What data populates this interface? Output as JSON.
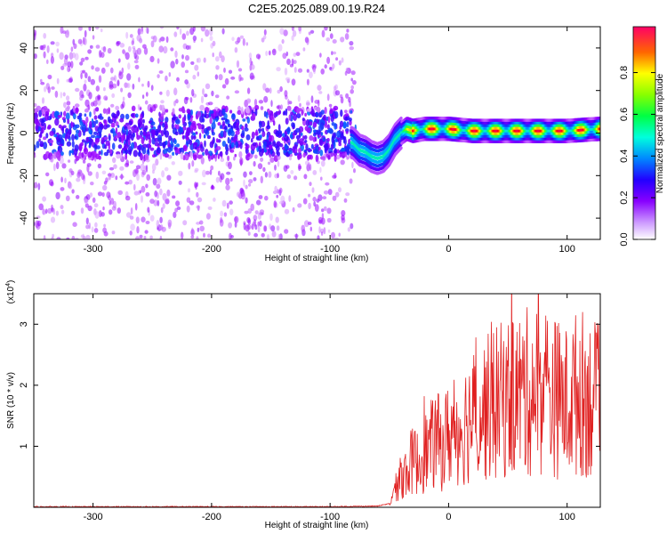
{
  "title": "C2E5.2025.089.00.19.R24",
  "chart_data": [
    {
      "type": "heatmap",
      "xlabel": "Height of straight line (km)",
      "ylabel": "Frequency (Hz)",
      "xlim": [
        -350,
        128
      ],
      "ylim": [
        -50,
        50
      ],
      "x_ticks": [
        -300,
        -200,
        -100,
        0,
        100
      ],
      "y_ticks": [
        -40,
        -20,
        0,
        20,
        40
      ],
      "colorbar": {
        "label": "Normalized spectral amplitude",
        "range": [
          0,
          1
        ],
        "ticks": [
          "0.0",
          "0.2",
          "0.4",
          "0.6",
          "0.8"
        ],
        "colors": [
          "#ffffff",
          "#9900ff",
          "#3300ff",
          "#0066ff",
          "#00ddff",
          "#00ff66",
          "#66ff00",
          "#ffff00",
          "#ff8800",
          "#ff0000",
          "#ff0066"
        ]
      },
      "series": [
        {
          "x": [
            -350,
            -300,
            -250,
            -200,
            -150,
            -100,
            -80,
            -75,
            -70,
            -65,
            -60,
            -55,
            -50,
            -45,
            -40,
            -35,
            -30,
            -20,
            0,
            20,
            50,
            80,
            100,
            128
          ],
          "y": [
            0,
            1,
            0,
            1,
            0,
            1,
            -5,
            -8,
            -9,
            -11,
            -12,
            -11,
            -8,
            -3,
            0,
            2,
            1,
            2,
            2,
            1,
            1,
            1,
            1,
            2
          ]
        }
      ]
    },
    {
      "type": "line",
      "xlabel": "Height of straight line (km)",
      "ylabel": "SNR (10 * v/v)",
      "y_multiplier": "(x10^4)",
      "xlim": [
        -350,
        128
      ],
      "ylim": [
        0,
        3.5
      ],
      "x_ticks": [
        -300,
        -200,
        -100,
        0,
        100
      ],
      "y_ticks": [
        1,
        2,
        3
      ],
      "color": "#e02020",
      "series": [
        {
          "x": [
            -350,
            -300,
            -200,
            -100,
            -60,
            -50,
            -45,
            -40,
            -35,
            -30,
            -25,
            -20,
            -15,
            -10,
            -5,
            0,
            10,
            20,
            30,
            40,
            50,
            60,
            70,
            80,
            90,
            100,
            110,
            120,
            128
          ],
          "y": [
            0.01,
            0.01,
            0.01,
            0.01,
            0.02,
            0.06,
            0.3,
            0.5,
            0.6,
            0.8,
            0.7,
            0.9,
            1.0,
            1.1,
            1.0,
            1.2,
            1.3,
            1.5,
            1.6,
            1.7,
            1.8,
            1.85,
            1.9,
            1.95,
            1.8,
            1.7,
            1.9,
            1.8,
            1.7
          ]
        }
      ]
    }
  ]
}
